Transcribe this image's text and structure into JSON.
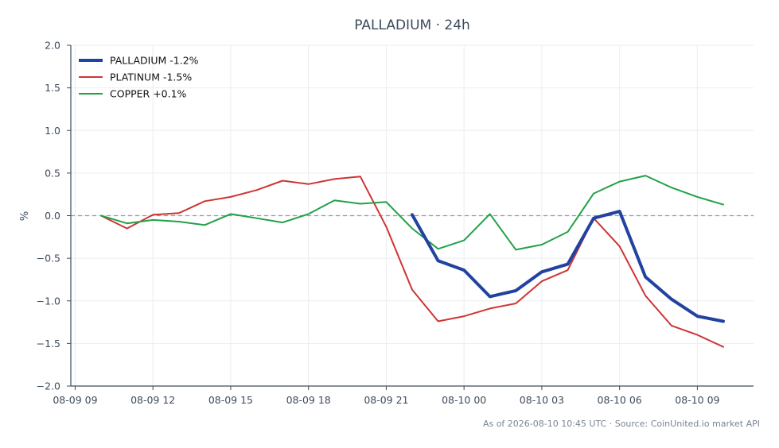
{
  "chart_data": {
    "type": "line",
    "title": "PALLADIUM · 24h",
    "ylabel": "%",
    "xlabel": "",
    "ylim": [
      -2.0,
      2.0
    ],
    "yticks": [
      -2.0,
      -1.5,
      -1.0,
      -0.5,
      0.0,
      0.5,
      1.0,
      1.5,
      2.0
    ],
    "ytick_labels": [
      "−2.0",
      "−1.5",
      "−1.0",
      "−0.5",
      "0.0",
      "0.5",
      "1.0",
      "1.5",
      "2.0"
    ],
    "xlim": [
      "2026-08-09 08:50",
      "2026-08-10 11:10"
    ],
    "xticks": [
      "2026-08-09 09:00",
      "2026-08-09 12:00",
      "2026-08-09 15:00",
      "2026-08-09 18:00",
      "2026-08-09 21:00",
      "2026-08-10 00:00",
      "2026-08-10 03:00",
      "2026-08-10 06:00",
      "2026-08-10 09:00"
    ],
    "xtick_labels": [
      "08-09 09",
      "08-09 12",
      "08-09 15",
      "08-09 18",
      "08-09 21",
      "08-10 00",
      "08-10 03",
      "08-10 06",
      "08-10 09"
    ],
    "x": [
      "2026-08-09 10:00",
      "2026-08-09 11:00",
      "2026-08-09 12:00",
      "2026-08-09 13:00",
      "2026-08-09 14:00",
      "2026-08-09 15:00",
      "2026-08-09 16:00",
      "2026-08-09 17:00",
      "2026-08-09 18:00",
      "2026-08-09 19:00",
      "2026-08-09 20:00",
      "2026-08-09 21:00",
      "2026-08-09 22:00",
      "2026-08-09 23:00",
      "2026-08-10 00:00",
      "2026-08-10 01:00",
      "2026-08-10 02:00",
      "2026-08-10 03:00",
      "2026-08-10 04:00",
      "2026-08-10 05:00",
      "2026-08-10 06:00",
      "2026-08-10 07:00",
      "2026-08-10 08:00",
      "2026-08-10 09:00",
      "2026-08-10 10:00"
    ],
    "series": [
      {
        "name": "PALLADIUM -1.2%",
        "color": "#2142a0",
        "width": 4,
        "values": [
          null,
          null,
          null,
          null,
          null,
          null,
          null,
          null,
          null,
          null,
          null,
          null,
          0.01,
          -0.53,
          -0.64,
          -0.95,
          -0.88,
          -0.66,
          -0.57,
          -0.03,
          0.05,
          -0.72,
          -0.98,
          -1.18,
          -1.24
        ]
      },
      {
        "name": "PLATINUM -1.5%",
        "color": "#cf3434",
        "width": 2,
        "values": [
          0.0,
          -0.15,
          0.01,
          0.03,
          0.17,
          0.22,
          0.3,
          0.41,
          0.37,
          0.43,
          0.46,
          -0.13,
          -0.87,
          -1.24,
          -1.18,
          -1.09,
          -1.03,
          -0.77,
          -0.64,
          -0.03,
          -0.36,
          -0.94,
          -1.29,
          -1.4,
          -1.54
        ]
      },
      {
        "name": "COPPER +0.1%",
        "color": "#23a047",
        "width": 2,
        "values": [
          0.0,
          -0.09,
          -0.05,
          -0.07,
          -0.11,
          0.02,
          -0.03,
          -0.08,
          0.02,
          0.18,
          0.14,
          0.16,
          -0.15,
          -0.39,
          -0.29,
          0.02,
          -0.4,
          -0.34,
          -0.19,
          0.26,
          0.4,
          0.47,
          0.33,
          0.22,
          0.13
        ]
      }
    ],
    "zero_line": true,
    "grid": true,
    "legend_position": "top-left"
  },
  "footer": {
    "text": "As of 2026-08-10 10:45 UTC · Source: CoinUnited.io market API"
  }
}
